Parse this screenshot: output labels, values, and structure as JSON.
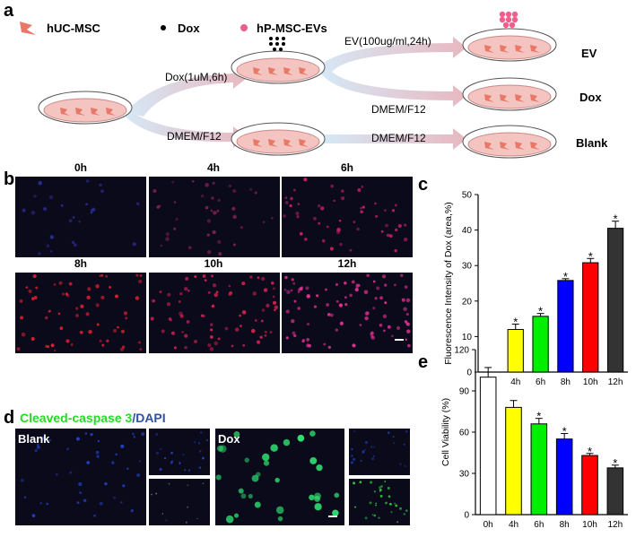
{
  "figure": {
    "panel_labels": [
      "a",
      "b",
      "c",
      "d",
      "e"
    ],
    "legend": [
      "hUC-MSC",
      "Dox",
      "hP-MSC-EVs"
    ],
    "arrows": [
      "Dox(1uM,6h)",
      "DMEM/F12",
      "EV(100ug/ml,24h)",
      "DMEM/F12",
      "DMEM/F12"
    ],
    "groups": [
      "EV",
      "Dox",
      "Blank"
    ],
    "timepoints": [
      "0h",
      "4h",
      "6h",
      "8h",
      "10h",
      "12h"
    ],
    "stain": [
      "Cleaved-caspase 3",
      "/DAPI"
    ],
    "conditions": [
      "Blank",
      "Dox"
    ]
  },
  "chart_data": [
    {
      "type": "bar",
      "y_label": "Fluorescence Intensity of Dox (area,%)",
      "categories": [
        "0h",
        "4h",
        "6h",
        "8h",
        "10h",
        "12h"
      ],
      "values": [
        0,
        12,
        15.7,
        25.8,
        30.8,
        40.5
      ],
      "errors": [
        0,
        1.5,
        0.8,
        0.5,
        1.2,
        2
      ],
      "colors": [
        "#ffffff",
        "#ffff00",
        "#00ee00",
        "#0000ff",
        "#ff0000",
        "#333333"
      ],
      "annotations": [
        null,
        "*",
        "*",
        "*",
        "*",
        "*"
      ],
      "ylim": [
        0,
        50
      ],
      "yticks": [
        0,
        10,
        20,
        30,
        40,
        50
      ]
    },
    {
      "type": "bar",
      "y_label": "Cell Viability (%)",
      "categories": [
        "0h",
        "4h",
        "6h",
        "8h",
        "10h",
        "12h"
      ],
      "values": [
        100,
        78,
        66,
        55,
        43,
        34
      ],
      "errors": [
        7,
        5,
        4,
        4,
        1.5,
        2
      ],
      "colors": [
        "#ffffff",
        "#ffff00",
        "#00ee00",
        "#0000ff",
        "#ff0000",
        "#333333"
      ],
      "annotations": [
        null,
        null,
        "*",
        "*",
        "*",
        "*"
      ],
      "ylim": [
        0,
        120
      ],
      "yticks": [
        0,
        30,
        60,
        90,
        120
      ]
    }
  ]
}
